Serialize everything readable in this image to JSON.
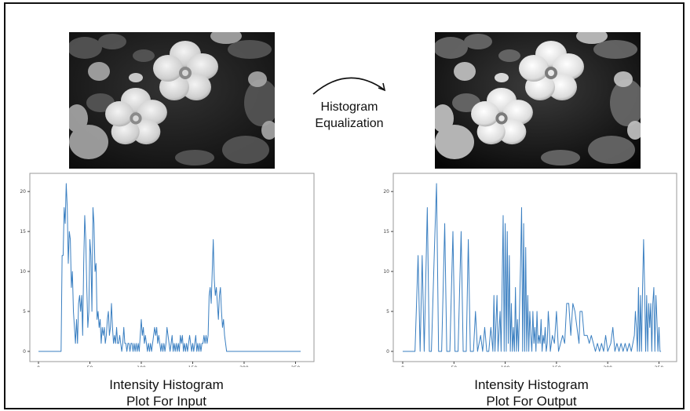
{
  "transform": {
    "line1": "Histogram",
    "line2": "Equalization"
  },
  "panels": {
    "input": {
      "caption_line1": "Intensity Histogram",
      "caption_line2": "Plot For Input"
    },
    "output": {
      "caption_line1": "Intensity Histogram",
      "caption_line2": "Plot For Output"
    }
  },
  "colors": {
    "line": "#3a7fc1",
    "axis": "#444444"
  },
  "chart_data": [
    {
      "type": "line",
      "xlim": [
        0,
        255
      ],
      "ylim": [
        0,
        21
      ],
      "x_ticks": [
        "0",
        "50",
        "100",
        "150",
        "200",
        "250"
      ],
      "y_ticks": [
        "0",
        "5",
        "10",
        "15",
        "20"
      ],
      "x_tick_values": [
        0,
        50,
        100,
        150,
        200,
        250
      ],
      "y_tick_values": [
        0,
        5,
        10,
        15,
        20
      ],
      "points": [
        [
          0,
          0
        ],
        [
          22,
          0
        ],
        [
          23,
          12
        ],
        [
          24,
          12
        ],
        [
          25,
          18
        ],
        [
          26,
          16
        ],
        [
          27,
          21
        ],
        [
          28,
          18
        ],
        [
          29,
          11
        ],
        [
          30,
          15
        ],
        [
          31,
          14
        ],
        [
          32,
          8
        ],
        [
          33,
          10
        ],
        [
          34,
          5
        ],
        [
          35,
          3
        ],
        [
          36,
          1
        ],
        [
          37,
          4
        ],
        [
          38,
          1
        ],
        [
          39,
          6
        ],
        [
          40,
          7
        ],
        [
          41,
          5
        ],
        [
          42,
          7
        ],
        [
          43,
          2
        ],
        [
          44,
          11
        ],
        [
          45,
          17
        ],
        [
          46,
          14
        ],
        [
          47,
          8
        ],
        [
          48,
          3
        ],
        [
          49,
          5
        ],
        [
          50,
          14
        ],
        [
          51,
          12
        ],
        [
          52,
          5
        ],
        [
          53,
          18
        ],
        [
          54,
          16
        ],
        [
          55,
          10
        ],
        [
          56,
          11
        ],
        [
          57,
          4
        ],
        [
          58,
          5
        ],
        [
          59,
          3
        ],
        [
          60,
          4
        ],
        [
          61,
          1
        ],
        [
          62,
          3
        ],
        [
          63,
          2
        ],
        [
          64,
          3
        ],
        [
          65,
          1
        ],
        [
          66,
          2
        ],
        [
          67,
          4
        ],
        [
          68,
          5
        ],
        [
          69,
          2
        ],
        [
          70,
          3
        ],
        [
          71,
          6
        ],
        [
          72,
          3
        ],
        [
          73,
          1
        ],
        [
          74,
          2
        ],
        [
          75,
          1
        ],
        [
          76,
          3
        ],
        [
          77,
          1
        ],
        [
          78,
          1
        ],
        [
          79,
          2
        ],
        [
          80,
          1
        ],
        [
          81,
          0
        ],
        [
          82,
          1
        ],
        [
          83,
          3
        ],
        [
          84,
          1
        ],
        [
          85,
          1
        ],
        [
          86,
          0
        ],
        [
          87,
          1
        ],
        [
          88,
          1
        ],
        [
          89,
          0
        ],
        [
          90,
          1
        ],
        [
          91,
          1
        ],
        [
          92,
          0
        ],
        [
          93,
          1
        ],
        [
          94,
          0
        ],
        [
          95,
          1
        ],
        [
          96,
          0
        ],
        [
          97,
          1
        ],
        [
          98,
          0
        ],
        [
          99,
          2
        ],
        [
          100,
          4
        ],
        [
          101,
          2
        ],
        [
          102,
          3
        ],
        [
          103,
          1
        ],
        [
          104,
          2
        ],
        [
          105,
          1
        ],
        [
          106,
          0
        ],
        [
          107,
          1
        ],
        [
          108,
          0
        ],
        [
          109,
          1
        ],
        [
          110,
          0
        ],
        [
          111,
          1
        ],
        [
          112,
          2
        ],
        [
          113,
          3
        ],
        [
          114,
          2
        ],
        [
          115,
          3
        ],
        [
          116,
          1
        ],
        [
          117,
          2
        ],
        [
          118,
          1
        ],
        [
          119,
          0
        ],
        [
          120,
          1
        ],
        [
          121,
          0
        ],
        [
          122,
          1
        ],
        [
          123,
          0
        ],
        [
          124,
          1
        ],
        [
          125,
          3
        ],
        [
          126,
          2
        ],
        [
          127,
          1
        ],
        [
          128,
          0
        ],
        [
          129,
          1
        ],
        [
          130,
          2
        ],
        [
          131,
          0
        ],
        [
          132,
          1
        ],
        [
          133,
          0
        ],
        [
          134,
          1
        ],
        [
          135,
          0
        ],
        [
          136,
          1
        ],
        [
          137,
          0
        ],
        [
          138,
          2
        ],
        [
          139,
          1
        ],
        [
          140,
          2
        ],
        [
          141,
          0
        ],
        [
          142,
          1
        ],
        [
          143,
          0
        ],
        [
          144,
          1
        ],
        [
          145,
          0
        ],
        [
          146,
          1
        ],
        [
          147,
          2
        ],
        [
          148,
          1
        ],
        [
          149,
          0
        ],
        [
          150,
          1
        ],
        [
          151,
          0
        ],
        [
          152,
          1
        ],
        [
          153,
          2
        ],
        [
          154,
          0
        ],
        [
          155,
          1
        ],
        [
          156,
          0
        ],
        [
          157,
          1
        ],
        [
          158,
          0
        ],
        [
          159,
          1
        ],
        [
          160,
          1
        ],
        [
          161,
          2
        ],
        [
          162,
          1
        ],
        [
          163,
          2
        ],
        [
          164,
          1
        ],
        [
          165,
          2
        ],
        [
          166,
          7
        ],
        [
          167,
          8
        ],
        [
          168,
          6
        ],
        [
          169,
          10
        ],
        [
          170,
          14
        ],
        [
          171,
          9
        ],
        [
          172,
          7
        ],
        [
          173,
          8
        ],
        [
          174,
          6
        ],
        [
          175,
          4
        ],
        [
          176,
          7
        ],
        [
          177,
          8
        ],
        [
          178,
          5
        ],
        [
          179,
          3
        ],
        [
          180,
          4
        ],
        [
          181,
          2
        ],
        [
          182,
          1
        ],
        [
          183,
          0
        ],
        [
          255,
          0
        ]
      ]
    },
    {
      "type": "line",
      "xlim": [
        0,
        255
      ],
      "ylim": [
        0,
        21
      ],
      "x_ticks": [
        "0",
        "50",
        "100",
        "150",
        "200",
        "250"
      ],
      "y_ticks": [
        "0",
        "5",
        "10",
        "15",
        "20"
      ],
      "x_tick_values": [
        0,
        50,
        100,
        150,
        200,
        250
      ],
      "y_tick_values": [
        0,
        5,
        10,
        15,
        20
      ],
      "points": [
        [
          0,
          0
        ],
        [
          12,
          0
        ],
        [
          15,
          12
        ],
        [
          17,
          0
        ],
        [
          19,
          12
        ],
        [
          21,
          0
        ],
        [
          24,
          18
        ],
        [
          26,
          0
        ],
        [
          28,
          0
        ],
        [
          31,
          13
        ],
        [
          33,
          21
        ],
        [
          35,
          0
        ],
        [
          38,
          0
        ],
        [
          41,
          16
        ],
        [
          43,
          0
        ],
        [
          46,
          0
        ],
        [
          49,
          15
        ],
        [
          51,
          0
        ],
        [
          54,
          0
        ],
        [
          57,
          15
        ],
        [
          59,
          0
        ],
        [
          62,
          0
        ],
        [
          64,
          14
        ],
        [
          66,
          0
        ],
        [
          69,
          0
        ],
        [
          71,
          5
        ],
        [
          73,
          0
        ],
        [
          76,
          2
        ],
        [
          78,
          0
        ],
        [
          80,
          3
        ],
        [
          82,
          0
        ],
        [
          84,
          0
        ],
        [
          86,
          3
        ],
        [
          88,
          0
        ],
        [
          89,
          7
        ],
        [
          90,
          0
        ],
        [
          92,
          7
        ],
        [
          93,
          0
        ],
        [
          95,
          5
        ],
        [
          96,
          0
        ],
        [
          98,
          17
        ],
        [
          99,
          0
        ],
        [
          100,
          16
        ],
        [
          101,
          0
        ],
        [
          102,
          15
        ],
        [
          103,
          1
        ],
        [
          104,
          12
        ],
        [
          105,
          0
        ],
        [
          106,
          6
        ],
        [
          107,
          0
        ],
        [
          108,
          3
        ],
        [
          109,
          0
        ],
        [
          110,
          8
        ],
        [
          111,
          0
        ],
        [
          112,
          4
        ],
        [
          113,
          0
        ],
        [
          115,
          11
        ],
        [
          116,
          18
        ],
        [
          117,
          0
        ],
        [
          118,
          16
        ],
        [
          119,
          0
        ],
        [
          120,
          13
        ],
        [
          121,
          0
        ],
        [
          122,
          7
        ],
        [
          123,
          0
        ],
        [
          124,
          5
        ],
        [
          125,
          2
        ],
        [
          126,
          0
        ],
        [
          127,
          5
        ],
        [
          128,
          1
        ],
        [
          129,
          3
        ],
        [
          130,
          0
        ],
        [
          131,
          5
        ],
        [
          132,
          1
        ],
        [
          133,
          2
        ],
        [
          134,
          1
        ],
        [
          135,
          4
        ],
        [
          136,
          0
        ],
        [
          137,
          2
        ],
        [
          138,
          1
        ],
        [
          139,
          3
        ],
        [
          140,
          0
        ],
        [
          141,
          1
        ],
        [
          142,
          5
        ],
        [
          143,
          3
        ],
        [
          144,
          0
        ],
        [
          146,
          2
        ],
        [
          148,
          1
        ],
        [
          150,
          5
        ],
        [
          152,
          0
        ],
        [
          154,
          1
        ],
        [
          156,
          2
        ],
        [
          158,
          1
        ],
        [
          160,
          6
        ],
        [
          162,
          6
        ],
        [
          164,
          2
        ],
        [
          166,
          6
        ],
        [
          168,
          5
        ],
        [
          170,
          3
        ],
        [
          172,
          1
        ],
        [
          173,
          5
        ],
        [
          175,
          5
        ],
        [
          177,
          2
        ],
        [
          180,
          2
        ],
        [
          182,
          1
        ],
        [
          184,
          2
        ],
        [
          186,
          1
        ],
        [
          188,
          0
        ],
        [
          190,
          1
        ],
        [
          192,
          0
        ],
        [
          194,
          1
        ],
        [
          196,
          0
        ],
        [
          198,
          2
        ],
        [
          200,
          0
        ],
        [
          203,
          1
        ],
        [
          205,
          3
        ],
        [
          207,
          0
        ],
        [
          209,
          1
        ],
        [
          211,
          0
        ],
        [
          213,
          1
        ],
        [
          215,
          0
        ],
        [
          217,
          1
        ],
        [
          219,
          0
        ],
        [
          221,
          1
        ],
        [
          223,
          0
        ],
        [
          226,
          2
        ],
        [
          227,
          5
        ],
        [
          228,
          3
        ],
        [
          229,
          0
        ],
        [
          230,
          8
        ],
        [
          231,
          0
        ],
        [
          232,
          7
        ],
        [
          233,
          0
        ],
        [
          234,
          8
        ],
        [
          235,
          14
        ],
        [
          236,
          8
        ],
        [
          237,
          0
        ],
        [
          238,
          7
        ],
        [
          239,
          0
        ],
        [
          240,
          6
        ],
        [
          241,
          3
        ],
        [
          242,
          6
        ],
        [
          243,
          0
        ],
        [
          244,
          6
        ],
        [
          245,
          8
        ],
        [
          246,
          0
        ],
        [
          247,
          7
        ],
        [
          248,
          4
        ],
        [
          249,
          0
        ],
        [
          250,
          3
        ],
        [
          251,
          0
        ],
        [
          252,
          0
        ]
      ]
    }
  ]
}
